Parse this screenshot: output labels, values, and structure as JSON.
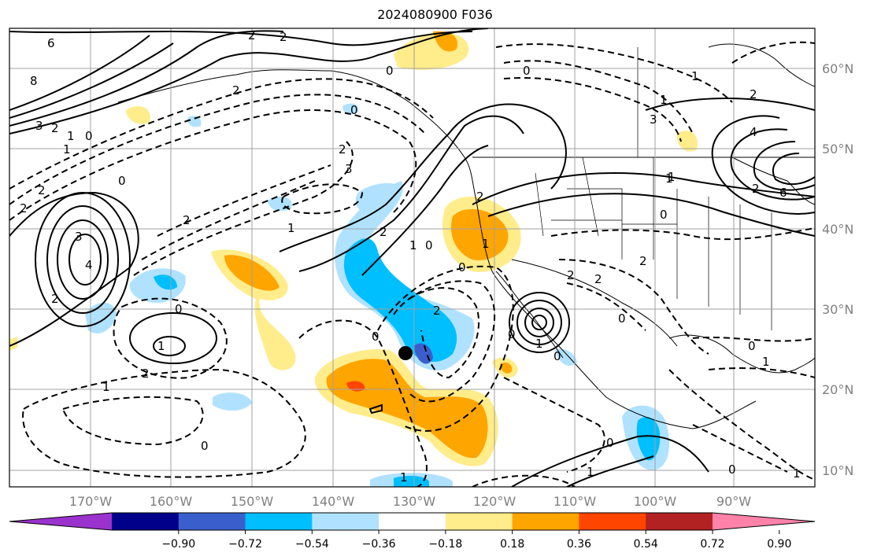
{
  "title": "2024080900 F036",
  "map": {
    "lon_ticks": [
      "170°W",
      "160°W",
      "150°W",
      "140°W",
      "130°W",
      "120°W",
      "110°W",
      "100°W",
      "90°W"
    ],
    "lat_ticks": [
      "60°N",
      "50°N",
      "40°N",
      "30°N",
      "20°N",
      "10°N"
    ],
    "marker": "storm-center-dot",
    "contour_labels": [
      "6",
      "2",
      "2",
      "0",
      "2",
      "0",
      "8",
      "3",
      "2",
      "1",
      "0",
      "1",
      "0",
      "2",
      "3",
      "2",
      "2",
      "0",
      "2",
      "3",
      "1",
      "2",
      "4",
      "1",
      "2",
      "0",
      "0",
      "1",
      "2",
      "1",
      "0",
      "1",
      "2",
      "1",
      "1",
      "0",
      "2",
      "0",
      "1",
      "1",
      "2",
      "1",
      "1",
      "0",
      "3",
      "2",
      "2",
      "4",
      "6",
      "1",
      "0",
      "2",
      "2",
      "0",
      "0",
      "1",
      "0",
      "0",
      "1",
      "0"
    ]
  },
  "colorbar": {
    "ticks": [
      "−0.90",
      "−0.72",
      "−0.54",
      "−0.36",
      "−0.18",
      "0.18",
      "0.36",
      "0.54",
      "0.72",
      "0.90"
    ],
    "colors": [
      "#9a32cd",
      "#00008b",
      "#3a5fcd",
      "#00bfff",
      "#b0e2ff",
      "#ffffff",
      "#ffec8b",
      "#ffa500",
      "#ff4500",
      "#b22222",
      "#ff82ab"
    ]
  }
}
